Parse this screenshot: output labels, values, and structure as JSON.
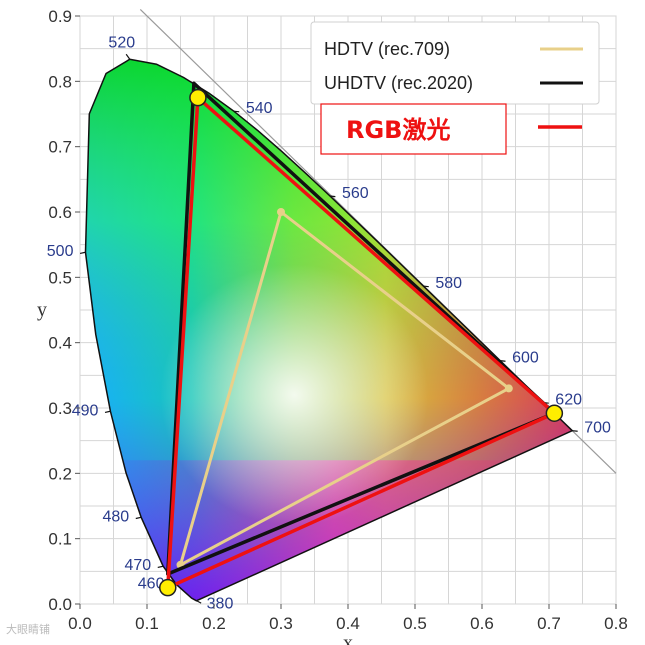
{
  "chart_data": {
    "type": "scatter",
    "title": "",
    "xlabel": "x",
    "ylabel": "y",
    "xlim": [
      0.0,
      0.8
    ],
    "ylim": [
      0.0,
      0.9
    ],
    "x_ticks": [
      "0.0",
      "0.1",
      "0.2",
      "0.3",
      "0.4",
      "0.5",
      "0.6",
      "0.7",
      "0.8"
    ],
    "y_ticks": [
      "0.0",
      "0.1",
      "0.2",
      "0.3",
      "0.4",
      "0.5",
      "0.6",
      "0.7",
      "0.8",
      "0.9"
    ],
    "grid": true,
    "locus": [
      [
        0.1741,
        0.005
      ],
      [
        0.1738,
        0.0049
      ],
      [
        0.1666,
        0.0089
      ],
      [
        0.144,
        0.0297
      ],
      [
        0.1241,
        0.0578
      ],
      [
        0.0913,
        0.1327
      ],
      [
        0.0687,
        0.2007
      ],
      [
        0.0454,
        0.295
      ],
      [
        0.0235,
        0.4127
      ],
      [
        0.0082,
        0.5384
      ],
      [
        0.0139,
        0.7502
      ],
      [
        0.0389,
        0.812
      ],
      [
        0.0743,
        0.8338
      ],
      [
        0.1142,
        0.8262
      ],
      [
        0.1547,
        0.8059
      ],
      [
        0.1929,
        0.7816
      ],
      [
        0.2296,
        0.7543
      ],
      [
        0.2658,
        0.7243
      ],
      [
        0.3016,
        0.6923
      ],
      [
        0.3373,
        0.6589
      ],
      [
        0.3731,
        0.6245
      ],
      [
        0.4087,
        0.5896
      ],
      [
        0.4441,
        0.5547
      ],
      [
        0.4788,
        0.5202
      ],
      [
        0.5125,
        0.4866
      ],
      [
        0.5448,
        0.4544
      ],
      [
        0.5752,
        0.4242
      ],
      [
        0.6029,
        0.3965
      ],
      [
        0.627,
        0.3725
      ],
      [
        0.6482,
        0.3514
      ],
      [
        0.6658,
        0.334
      ],
      [
        0.6915,
        0.3083
      ],
      [
        0.7079,
        0.292
      ],
      [
        0.719,
        0.2809
      ],
      [
        0.7347,
        0.2653
      ]
    ],
    "wavelength_labels": [
      {
        "label": "380",
        "x": 0.1741,
        "y": 0.005,
        "side": "br"
      },
      {
        "label": "460",
        "x": 0.144,
        "y": 0.0297,
        "side": "l"
      },
      {
        "label": "470",
        "x": 0.1241,
        "y": 0.0578,
        "side": "l"
      },
      {
        "label": "480",
        "x": 0.0913,
        "y": 0.1327,
        "side": "l"
      },
      {
        "label": "490",
        "x": 0.0454,
        "y": 0.295,
        "side": "l"
      },
      {
        "label": "500",
        "x": 0.0082,
        "y": 0.5384,
        "side": "l"
      },
      {
        "label": "520",
        "x": 0.0743,
        "y": 0.8338,
        "side": "t"
      },
      {
        "label": "540",
        "x": 0.2296,
        "y": 0.7543,
        "side": "r"
      },
      {
        "label": "560",
        "x": 0.3731,
        "y": 0.6245,
        "side": "r"
      },
      {
        "label": "580",
        "x": 0.5125,
        "y": 0.4866,
        "side": "r"
      },
      {
        "label": "600",
        "x": 0.627,
        "y": 0.3725,
        "side": "r"
      },
      {
        "label": "620",
        "x": 0.6915,
        "y": 0.3083,
        "side": "r"
      },
      {
        "label": "700",
        "x": 0.7347,
        "y": 0.2653,
        "side": "r"
      }
    ],
    "series": [
      {
        "name": "HDTV (rec.709)",
        "color": "#e8d08a",
        "points": [
          [
            0.64,
            0.33
          ],
          [
            0.3,
            0.6
          ],
          [
            0.15,
            0.06
          ]
        ]
      },
      {
        "name": "UHDTV (rec.2020)",
        "color": "#111111",
        "points": [
          [
            0.708,
            0.292
          ],
          [
            0.17,
            0.797
          ],
          [
            0.131,
            0.046
          ]
        ]
      },
      {
        "name": "RGB激光",
        "color": "#ee1111",
        "points": [
          [
            0.708,
            0.292
          ],
          [
            0.176,
            0.775
          ],
          [
            0.131,
            0.025
          ]
        ]
      }
    ],
    "highlight_points": [
      [
        0.708,
        0.292
      ],
      [
        0.176,
        0.775
      ],
      [
        0.131,
        0.025
      ]
    ],
    "legend_position": "top-right"
  },
  "watermark": "大眼睛铺"
}
